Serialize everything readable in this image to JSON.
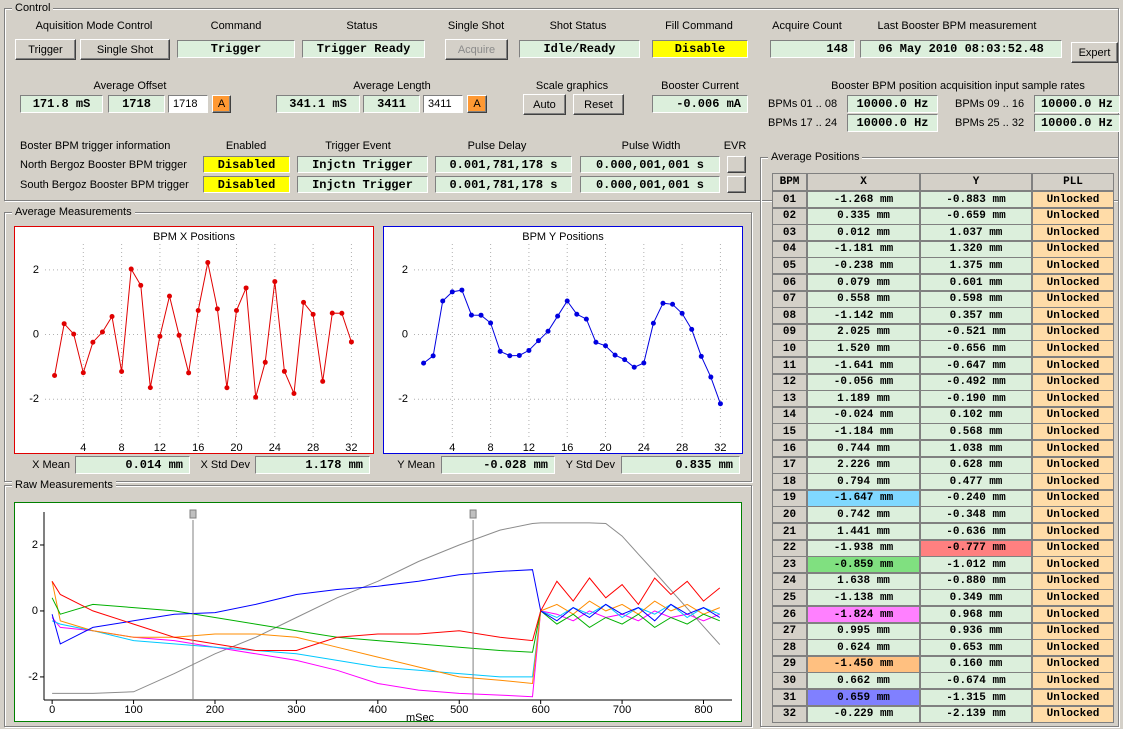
{
  "control": {
    "title": "Control",
    "acquisition_mode": {
      "label": "Aquisition Mode Control",
      "buttons": [
        "Trigger",
        "Single Shot"
      ]
    },
    "command": {
      "label": "Command",
      "value": "Trigger"
    },
    "status": {
      "label": "Status",
      "value": "Trigger Ready"
    },
    "single_shot": {
      "label": "Single Shot",
      "button": "Acquire"
    },
    "shot_status": {
      "label": "Shot Status",
      "value": "Idle/Ready"
    },
    "fill_command": {
      "label": "Fill Command",
      "value": "Disable"
    },
    "acquire_count": {
      "label": "Acquire Count",
      "value": "148"
    },
    "last_measurement": {
      "label": "Last Booster BPM measurement",
      "value": "06 May 2010 08:03:52.48"
    },
    "expert_button": "Expert",
    "average_offset": {
      "label": "Average Offset",
      "time": "171.8 mS",
      "count": "1718",
      "input": "1718",
      "button": "A"
    },
    "average_length": {
      "label": "Average Length",
      "time": "341.1 mS",
      "count": "3411",
      "input": "3411",
      "button": "A"
    },
    "scale_graphics": {
      "label": "Scale graphics",
      "buttons": [
        "Auto",
        "Reset"
      ]
    },
    "booster_current": {
      "label": "Booster Current",
      "value": "-0.006 mA"
    },
    "sample_rates": {
      "label": "Booster BPM position acquisition input sample rates",
      "items": [
        {
          "label": "BPMs 01 .. 08",
          "value": "10000.0 Hz"
        },
        {
          "label": "BPMs 09 .. 16",
          "value": "10000.0 Hz"
        },
        {
          "label": "BPMs 17 .. 24",
          "value": "10000.0 Hz"
        },
        {
          "label": "BPMs 25 .. 32",
          "value": "10000.0 Hz"
        }
      ]
    },
    "trigger_info": {
      "headers": [
        "Boster BPM trigger information",
        "Enabled",
        "Trigger Event",
        "Pulse Delay",
        "Pulse Width",
        "EVR"
      ],
      "rows": [
        [
          "North Bergoz Booster BPM trigger",
          "Disabled",
          "Injctn Trigger",
          "0.001,781,178 s",
          "0.000,001,001 s"
        ],
        [
          "South Bergoz Booster BPM trigger",
          "Disabled",
          "Injctn Trigger",
          "0.001,781,178 s",
          "0.000,001,001 s"
        ]
      ]
    }
  },
  "average_measurements": {
    "title": "Average Measurements",
    "charts": [
      {
        "type": "line",
        "title": "BPM X Positions",
        "color": "#e00000",
        "x": [
          1,
          2,
          3,
          4,
          5,
          6,
          7,
          8,
          9,
          10,
          11,
          12,
          13,
          14,
          15,
          16,
          17,
          18,
          19,
          20,
          21,
          22,
          23,
          24,
          25,
          26,
          27,
          28,
          29,
          30,
          31,
          32
        ],
        "values": [
          -1.268,
          0.335,
          0.012,
          -1.181,
          -0.238,
          0.079,
          0.558,
          -1.142,
          2.025,
          1.52,
          -1.641,
          -0.056,
          1.189,
          -0.024,
          -1.184,
          0.744,
          2.226,
          0.794,
          -1.647,
          0.742,
          1.441,
          -1.938,
          -0.859,
          1.638,
          -1.138,
          -1.824,
          0.995,
          0.624,
          -1.45,
          0.662,
          0.659,
          -0.229
        ],
        "xlim": [
          0,
          33
        ],
        "ylim": [
          -3.2,
          2.8
        ],
        "xticks": [
          4,
          8,
          12,
          16,
          20,
          24,
          28,
          32
        ],
        "yticks": [
          -2,
          0,
          2
        ],
        "grid": true
      },
      {
        "type": "line",
        "title": "BPM Y Positions",
        "color": "#0000e0",
        "x": [
          1,
          2,
          3,
          4,
          5,
          6,
          7,
          8,
          9,
          10,
          11,
          12,
          13,
          14,
          15,
          16,
          17,
          18,
          19,
          20,
          21,
          22,
          23,
          24,
          25,
          26,
          27,
          28,
          29,
          30,
          31,
          32
        ],
        "values": [
          -0.883,
          -0.659,
          1.037,
          1.32,
          1.375,
          0.601,
          0.598,
          0.357,
          -0.521,
          -0.656,
          -0.647,
          -0.492,
          -0.19,
          0.102,
          0.568,
          1.038,
          0.628,
          0.477,
          -0.24,
          -0.348,
          -0.636,
          -0.777,
          -1.012,
          -0.88,
          0.349,
          0.968,
          0.936,
          0.653,
          0.16,
          -0.674,
          -1.315,
          -2.139
        ],
        "xlim": [
          0,
          33
        ],
        "ylim": [
          -3.2,
          2.8
        ],
        "xticks": [
          4,
          8,
          12,
          16,
          20,
          24,
          28,
          32
        ],
        "yticks": [
          -2,
          0,
          2
        ],
        "grid": true
      }
    ],
    "stats": [
      {
        "label": "X Mean",
        "value": "0.014 mm"
      },
      {
        "label": "X Std Dev",
        "value": "1.178 mm"
      },
      {
        "label": "Y Mean",
        "value": "-0.028 mm"
      },
      {
        "label": "Y Std Dev",
        "value": "0.835 mm"
      }
    ]
  },
  "raw_measurements": {
    "title": "Raw Measurements",
    "chart": {
      "type": "line",
      "x_label": "mSec",
      "x": [
        0,
        10,
        50,
        100,
        150,
        200,
        250,
        300,
        350,
        400,
        450,
        500,
        550,
        590,
        600,
        620,
        640,
        660,
        680,
        700,
        720,
        740,
        760,
        780,
        800,
        820
      ],
      "series": [
        {
          "color": "#8c8c8c",
          "values": [
            -2.5,
            -2.5,
            -2.5,
            -2.45,
            -1.9,
            -1.3,
            -0.8,
            -0.2,
            0.4,
            0.9,
            1.5,
            2.0,
            2.45,
            2.65,
            2.67,
            2.67,
            2.67,
            2.67,
            2.65,
            2.27,
            1.72,
            1.18,
            0.63,
            0.08,
            -0.47,
            -1.02
          ]
        },
        {
          "color": "#ff00ff",
          "values": [
            -0.2,
            -0.5,
            -0.6,
            -0.8,
            -0.9,
            -1.1,
            -1.3,
            -1.5,
            -1.8,
            -2.2,
            -2.4,
            -2.5,
            -2.55,
            -2.6,
            0.0,
            -0.1,
            -0.3,
            0.0,
            -0.2,
            -0.1,
            -0.3,
            0.0,
            -0.2,
            -0.1,
            -0.3,
            -0.1
          ]
        },
        {
          "color": "#00c8ff",
          "values": [
            -0.3,
            -0.4,
            -0.6,
            -0.9,
            -1.0,
            -1.1,
            -1.2,
            -1.3,
            -1.5,
            -1.7,
            -1.8,
            -1.9,
            -2.0,
            -2.0,
            0.0,
            -0.2,
            0.1,
            -0.1,
            0.2,
            -0.2,
            0.1,
            -0.1,
            0.2,
            -0.2,
            0.1,
            -0.1
          ]
        },
        {
          "color": "#ff8c00",
          "values": [
            0.9,
            -0.3,
            -0.6,
            -0.8,
            -0.8,
            -0.7,
            -0.7,
            -0.8,
            -1.1,
            -1.4,
            -1.7,
            -2.0,
            -2.1,
            -2.2,
            0.0,
            0.2,
            -0.1,
            0.3,
            0.0,
            0.2,
            -0.1,
            0.3,
            0.0,
            0.2,
            -0.1,
            0.1
          ]
        },
        {
          "color": "#00b000",
          "values": [
            0.4,
            -0.1,
            0.2,
            0.1,
            0.0,
            -0.2,
            -0.4,
            -0.6,
            -0.8,
            -0.9,
            -1.0,
            -1.1,
            -1.2,
            -1.25,
            0.0,
            -0.4,
            -0.1,
            -0.5,
            -0.2,
            -0.4,
            -0.1,
            -0.5,
            -0.2,
            -0.4,
            -0.1,
            -0.3
          ]
        },
        {
          "color": "#0000ff",
          "values": [
            -0.1,
            -1.0,
            -0.5,
            -0.3,
            -0.1,
            -0.05,
            0.2,
            0.5,
            0.65,
            0.75,
            0.9,
            1.1,
            1.2,
            1.25,
            0.0,
            -0.3,
            0.1,
            -0.2,
            0.2,
            -0.1,
            0.1,
            -0.3,
            0.2,
            -0.1,
            0.1,
            -0.2
          ]
        },
        {
          "color": "#ff0000",
          "values": [
            0.9,
            0.5,
            0.0,
            -0.4,
            -0.8,
            -1.0,
            -1.2,
            -1.2,
            -0.8,
            -0.7,
            -0.7,
            -0.6,
            -0.8,
            -0.9,
            0.0,
            0.9,
            0.3,
            1.0,
            0.4,
            0.8,
            0.2,
            1.0,
            0.5,
            0.9,
            0.3,
            0.7
          ]
        }
      ],
      "markers": [
        173,
        517
      ],
      "xlim": [
        -10,
        835
      ],
      "ylim": [
        -2.7,
        3.0
      ],
      "xticks": [
        0,
        100,
        200,
        300,
        400,
        500,
        600,
        700,
        800
      ],
      "yticks": [
        -2,
        0,
        2
      ],
      "grid": false
    }
  },
  "average_positions": {
    "title": "Average Positions",
    "headers": [
      "BPM",
      "X",
      "Y",
      "PLL"
    ],
    "rows": [
      [
        "01",
        "-1.268 mm",
        "-0.883 mm",
        "Unlocked"
      ],
      [
        "02",
        "0.335 mm",
        "-0.659 mm",
        "Unlocked"
      ],
      [
        "03",
        "0.012 mm",
        "1.037 mm",
        "Unlocked"
      ],
      [
        "04",
        "-1.181 mm",
        "1.320 mm",
        "Unlocked"
      ],
      [
        "05",
        "-0.238 mm",
        "1.375 mm",
        "Unlocked"
      ],
      [
        "06",
        "0.079 mm",
        "0.601 mm",
        "Unlocked"
      ],
      [
        "07",
        "0.558 mm",
        "0.598 mm",
        "Unlocked"
      ],
      [
        "08",
        "-1.142 mm",
        "0.357 mm",
        "Unlocked"
      ],
      [
        "09",
        "2.025 mm",
        "-0.521 mm",
        "Unlocked"
      ],
      [
        "10",
        "1.520 mm",
        "-0.656 mm",
        "Unlocked"
      ],
      [
        "11",
        "-1.641 mm",
        "-0.647 mm",
        "Unlocked"
      ],
      [
        "12",
        "-0.056 mm",
        "-0.492 mm",
        "Unlocked"
      ],
      [
        "13",
        "1.189 mm",
        "-0.190 mm",
        "Unlocked"
      ],
      [
        "14",
        "-0.024 mm",
        "0.102 mm",
        "Unlocked"
      ],
      [
        "15",
        "-1.184 mm",
        "0.568 mm",
        "Unlocked"
      ],
      [
        "16",
        "0.744 mm",
        "1.038 mm",
        "Unlocked"
      ],
      [
        "17",
        "2.226 mm",
        "0.628 mm",
        "Unlocked"
      ],
      [
        "18",
        "0.794 mm",
        "0.477 mm",
        "Unlocked"
      ],
      [
        "19",
        "-1.647 mm",
        "-0.240 mm",
        "Unlocked"
      ],
      [
        "20",
        "0.742 mm",
        "-0.348 mm",
        "Unlocked"
      ],
      [
        "21",
        "1.441 mm",
        "-0.636 mm",
        "Unlocked"
      ],
      [
        "22",
        "-1.938 mm",
        "-0.777 mm",
        "Unlocked"
      ],
      [
        "23",
        "-0.859 mm",
        "-1.012 mm",
        "Unlocked"
      ],
      [
        "24",
        "1.638 mm",
        "-0.880 mm",
        "Unlocked"
      ],
      [
        "25",
        "-1.138 mm",
        "0.349 mm",
        "Unlocked"
      ],
      [
        "26",
        "-1.824 mm",
        "0.968 mm",
        "Unlocked"
      ],
      [
        "27",
        "0.995 mm",
        "0.936 mm",
        "Unlocked"
      ],
      [
        "28",
        "0.624 mm",
        "0.653 mm",
        "Unlocked"
      ],
      [
        "29",
        "-1.450 mm",
        "0.160 mm",
        "Unlocked"
      ],
      [
        "30",
        "0.662 mm",
        "-0.674 mm",
        "Unlocked"
      ],
      [
        "31",
        "0.659 mm",
        "-1.315 mm",
        "Unlocked"
      ],
      [
        "32",
        "-0.229 mm",
        "-2.139 mm",
        "Unlocked"
      ]
    ],
    "highlights": [
      {
        "row": 18,
        "col": 1,
        "color": "#80d8ff"
      },
      {
        "row": 21,
        "col": 2,
        "color": "#ff8080"
      },
      {
        "row": 22,
        "col": 1,
        "color": "#80e080"
      },
      {
        "row": 25,
        "col": 1,
        "color": "#ff80ff"
      },
      {
        "row": 28,
        "col": 1,
        "color": "#ffc080"
      },
      {
        "row": 30,
        "col": 1,
        "color": "#8080ff"
      }
    ]
  }
}
